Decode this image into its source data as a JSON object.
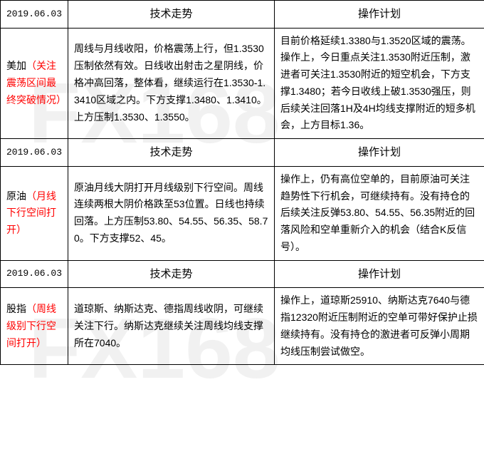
{
  "watermark_text": "FX168",
  "headers": {
    "trend": "技术走势",
    "plan": "操作计划"
  },
  "sections": [
    {
      "date": "2019.06.03",
      "label_name": "美加",
      "label_note": "（关注震荡区间最终突破情况）",
      "trend": "周线与月线收阳，价格震荡上行，但1.3530压制依然有效。日线收出射击之星阴线，价格冲高回落，整体看，继续运行在1.3530-1.3410区域之内。下方支撑1.3480、1.3410。上方压制1.3530、1.3550。",
      "plan": "目前价格延续1.3380与1.3520区域的震荡。操作上，今日重点关注1.3530附近压制，激进者可关注1.3530附近的短空机会，下方支撑1.3480；若今日收线上破1.3530强压，则后续关注回落1H及4H均线支撑附近的短多机会，上方目标1.36。"
    },
    {
      "date": "2019.06.03",
      "label_name": "原油",
      "label_note": "（月线下行空间打开）",
      "trend": "原油月线大阴打开月线级别下行空间。周线连续两根大阴价格跌至53位置。日线也持续回落。上方压制53.80、54.55、56.35、58.70。下方支撑52、45。",
      "plan": "操作上，仍有高位空单的，目前原油可关注趋势性下行机会，可继续持有。没有持仓的后续关注反弹53.80、54.55、56.35附近的回落风险和空单重新介入的机会（结合K反信号）。"
    },
    {
      "date": "2019.06.03",
      "label_name": "股指",
      "label_note": "（周线级别下行空间打开）",
      "trend": "道琼斯、纳斯达克、德指周线收阴，可继续关注下行。纳斯达克继续关注周线均线支撑所在7040。",
      "plan": "操作上，道琼斯25910、纳斯达克7640与德指12320附近压制附近的空单可带好保护止损继续持有。没有持仓的激进者可反弹小周期均线压制尝试做空。"
    }
  ],
  "colors": {
    "border": "#000000",
    "text": "#000000",
    "note": "#ff0000",
    "watermark": "rgba(200,200,200,0.25)",
    "background": "#ffffff"
  },
  "typography": {
    "body_fontsize": 14,
    "header_fontsize": 15,
    "font_family": "Microsoft YaHei"
  }
}
